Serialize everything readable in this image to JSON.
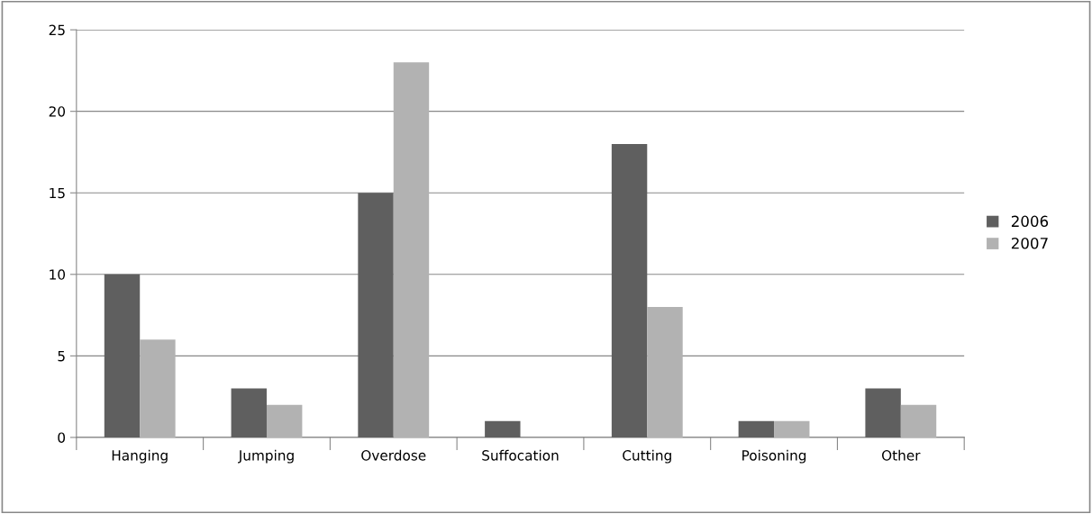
{
  "chart_data": {
    "type": "bar",
    "categories": [
      "Hanging",
      "Jumping",
      "Overdose",
      "Suffocation",
      "Cutting",
      "Poisoning",
      "Other"
    ],
    "series": [
      {
        "name": "2006",
        "color": "#5f5f5f",
        "values": [
          10,
          3,
          15,
          1,
          18,
          1,
          3
        ]
      },
      {
        "name": "2007",
        "color": "#b2b2b2",
        "values": [
          6,
          2,
          23,
          0,
          8,
          1,
          2
        ]
      }
    ],
    "ylim": [
      0,
      25
    ],
    "yticks": [
      0,
      5,
      10,
      15,
      20,
      25
    ],
    "grid": "y",
    "legend": "right"
  }
}
